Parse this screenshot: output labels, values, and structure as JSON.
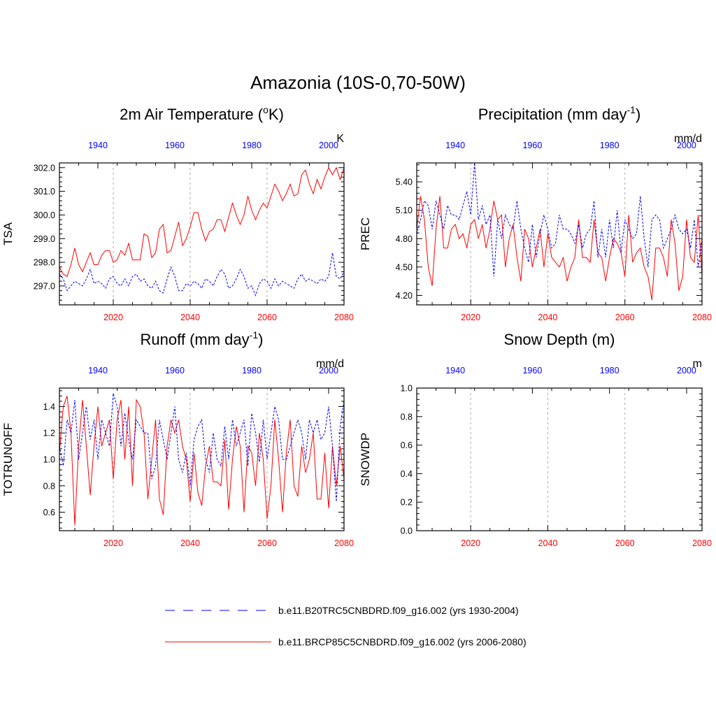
{
  "figure": {
    "title": "Amazonia (10S-0,70-50W)",
    "colors": {
      "control": "#0000ff",
      "future": "#ff0000",
      "grid": "#aaaaaa"
    }
  },
  "legend": [
    {
      "label": "b.e11.B20TRC5CNBDRD.f09_g16.002 (yrs 1930-2004)",
      "style": "dashed",
      "color": "#0000ff"
    },
    {
      "label": "b.e11.BRCP85C5CNBDRD.f09_g16.002 (yrs 2006-2080)",
      "style": "solid",
      "color": "#ff0000"
    }
  ],
  "chart_data": [
    {
      "type": "line",
      "title": "2m Air Temperature (oK)",
      "title_main": "2m Air Temperature (",
      "title_sup": "o",
      "title_end": "K)",
      "ylabel": "TSA",
      "units": "K",
      "ylim": [
        296.2,
        302.2
      ],
      "yticks": [
        297.0,
        298.0,
        299.0,
        300.0,
        301.0,
        302.0
      ],
      "ytick_labels": [
        "297.0",
        "298.0",
        "299.0",
        "300.0",
        "301.0",
        "302.0"
      ],
      "xlim_bottom": [
        2006,
        2080
      ],
      "xticks_bottom": [
        2020,
        2040,
        2060,
        2080
      ],
      "xlim_top": [
        1930,
        2004
      ],
      "xticks_top": [
        1940,
        1960,
        1980,
        2000
      ],
      "series": [
        {
          "name": "b.e11.BRCP85C5CNBDRD.f09_g16.002 (yrs 2006-2080)",
          "color": "#ff0000",
          "style": "solid",
          "axis": "bottom",
          "values": [
            297.8,
            297.5,
            297.4,
            297.9,
            298.6,
            297.9,
            297.6,
            298.0,
            298.4,
            297.9,
            297.9,
            298.3,
            298.5,
            298.5,
            298.0,
            298.1,
            298.5,
            298.3,
            298.8,
            298.1,
            298.1,
            298.1,
            299.2,
            299.1,
            298.2,
            298.4,
            299.4,
            299.6,
            298.4,
            298.5,
            299.1,
            299.7,
            298.7,
            299.0,
            299.5,
            300.1,
            300.1,
            299.4,
            298.9,
            299.3,
            299.4,
            299.8,
            299.8,
            299.3,
            299.9,
            300.5,
            300.0,
            299.6,
            300.0,
            300.8,
            300.2,
            299.8,
            300.2,
            300.5,
            300.3,
            300.8,
            301.3,
            301.0,
            300.6,
            300.9,
            301.3,
            300.8,
            300.9,
            301.7,
            301.9,
            301.3,
            300.9,
            301.5,
            301.1,
            301.6,
            302.0,
            301.7,
            302.0,
            301.5,
            302.0
          ]
        },
        {
          "name": "b.e11.B20TRC5CNBDRD.f09_g16.002 (yrs 1930-2004)",
          "color": "#0000ff",
          "style": "dashed",
          "axis": "top",
          "values": [
            297.5,
            297.3,
            296.8,
            297.0,
            297.2,
            297.1,
            297.0,
            297.3,
            297.7,
            297.1,
            297.2,
            297.1,
            296.9,
            297.3,
            297.4,
            297.1,
            297.0,
            297.3,
            297.0,
            297.4,
            297.5,
            297.2,
            297.3,
            297.0,
            296.9,
            297.2,
            296.8,
            296.7,
            297.3,
            297.8,
            297.4,
            296.8,
            296.8,
            297.1,
            297.0,
            297.2,
            297.1,
            296.9,
            297.3,
            297.2,
            297.0,
            297.4,
            297.7,
            297.5,
            296.9,
            297.0,
            297.3,
            297.7,
            297.4,
            296.9,
            297.0,
            296.6,
            297.1,
            297.3,
            297.2,
            296.9,
            297.3,
            297.0,
            297.2,
            297.1,
            297.0,
            296.9,
            297.3,
            297.5,
            297.2,
            297.3,
            297.2,
            297.1,
            297.3,
            297.2,
            297.4,
            298.4,
            297.4,
            297.3,
            297.6
          ]
        }
      ]
    },
    {
      "type": "line",
      "title": "Precipitation (mm day-1)",
      "title_main": "Precipitation (mm day",
      "title_sup": "-1",
      "title_end": ")",
      "ylabel": "PREC",
      "units": "mm/d",
      "ylim": [
        4.1,
        5.6
      ],
      "yticks": [
        4.2,
        4.5,
        4.8,
        5.1,
        5.4
      ],
      "ytick_labels": [
        "4.20",
        "4.50",
        "4.80",
        "5.10",
        "5.40"
      ],
      "xlim_bottom": [
        2006,
        2080
      ],
      "xticks_bottom": [
        2020,
        2040,
        2060,
        2080
      ],
      "xlim_top": [
        1930,
        2004
      ],
      "xticks_top": [
        1940,
        1960,
        1980,
        2000
      ],
      "series": [
        {
          "name": "b.e11.BRCP85C5CNBDRD.f09_g16.002 (yrs 2006-2080)",
          "color": "#ff0000",
          "style": "solid",
          "axis": "bottom",
          "values": [
            4.9,
            5.25,
            5.0,
            4.5,
            4.3,
            4.9,
            5.25,
            4.7,
            4.7,
            4.9,
            4.95,
            4.8,
            4.85,
            4.7,
            4.95,
            5.0,
            4.8,
            4.95,
            4.7,
            4.9,
            5.2,
            5.0,
            5.05,
            4.5,
            4.8,
            4.95,
            4.6,
            4.35,
            4.9,
            4.8,
            4.5,
            4.7,
            4.9,
            4.5,
            4.85,
            4.6,
            4.55,
            4.5,
            4.6,
            4.35,
            4.5,
            4.6,
            5.0,
            4.6,
            4.6,
            4.55,
            5.0,
            4.65,
            4.6,
            4.35,
            4.6,
            4.8,
            4.75,
            4.65,
            4.4,
            5.05,
            4.55,
            4.65,
            4.7,
            4.5,
            4.4,
            4.15,
            4.7,
            4.7,
            4.6,
            4.4,
            5.0,
            4.75,
            4.25,
            4.4,
            5.0,
            4.6,
            4.55,
            5.05,
            4.4
          ]
        },
        {
          "name": "b.e11.B20TRC5CNBDRD.f09_g16.002 (yrs 1930-2004)",
          "color": "#0000ff",
          "style": "dashed",
          "axis": "top",
          "values": [
            4.85,
            5.0,
            5.2,
            5.15,
            4.9,
            5.2,
            5.05,
            4.9,
            5.15,
            5.05,
            5.05,
            5.0,
            5.15,
            5.3,
            5.05,
            5.6,
            5.0,
            5.15,
            4.95,
            5.05,
            4.4,
            5.0,
            4.8,
            5.05,
            4.95,
            4.9,
            5.2,
            4.9,
            4.7,
            4.55,
            4.95,
            4.6,
            4.85,
            5.05,
            4.9,
            4.7,
            4.75,
            5.05,
            4.9,
            4.9,
            4.85,
            4.75,
            4.95,
            4.7,
            4.85,
            4.9,
            5.2,
            4.6,
            4.9,
            4.6,
            5.0,
            4.7,
            5.1,
            4.65,
            5.0,
            4.9,
            4.8,
            4.85,
            5.25,
            4.8,
            4.5,
            5.0,
            5.05,
            5.0,
            4.7,
            4.8,
            4.9,
            5.05,
            4.9,
            4.85,
            4.9,
            4.7,
            5.0,
            4.5,
            4.8
          ]
        }
      ]
    },
    {
      "type": "line",
      "title": "Runoff (mm day-1)",
      "title_main": "Runoff (mm day",
      "title_sup": "-1",
      "title_end": ")",
      "ylabel": "TOTRUNOFF",
      "units": "mm/d",
      "ylim": [
        0.46,
        1.54
      ],
      "yticks": [
        0.6,
        0.8,
        1.0,
        1.2,
        1.4
      ],
      "ytick_labels": [
        "0.6",
        "0.8",
        "1.0",
        "1.2",
        "1.4"
      ],
      "xlim_bottom": [
        2006,
        2080
      ],
      "xticks_bottom": [
        2020,
        2040,
        2060,
        2080
      ],
      "xlim_top": [
        1930,
        2004
      ],
      "xticks_top": [
        1940,
        1960,
        1980,
        2000
      ],
      "series": [
        {
          "name": "b.e11.BRCP85C5CNBDRD.f09_g16.002 (yrs 2006-2080)",
          "color": "#ff0000",
          "style": "solid",
          "axis": "bottom",
          "values": [
            1.05,
            1.4,
            1.48,
            1.2,
            0.5,
            1.1,
            1.45,
            1.1,
            0.73,
            1.1,
            1.4,
            1.1,
            1.2,
            1.3,
            0.85,
            1.3,
            1.45,
            1.0,
            1.4,
            0.8,
            1.45,
            1.4,
            1.2,
            0.7,
            1.0,
            1.3,
            0.7,
            0.58,
            1.1,
            1.3,
            1.2,
            1.3,
            1.1,
            1.0,
            0.68,
            1.05,
            0.75,
            0.65,
            0.95,
            1.1,
            0.83,
            0.83,
            0.8,
            1.15,
            0.62,
            1.0,
            1.25,
            1.1,
            0.6,
            1.1,
            1.05,
            0.8,
            1.2,
            1.0,
            0.55,
            0.8,
            1.3,
            1.0,
            0.6,
            1.05,
            1.3,
            0.8,
            0.72,
            1.1,
            0.9,
            1.0,
            1.2,
            0.7,
            0.7,
            1.05,
            0.63,
            1.1,
            0.8,
            1.1,
            0.85
          ]
        },
        {
          "name": "b.e11.B20TRC5CNBDRD.f09_g16.002 (yrs 1930-2004)",
          "color": "#0000ff",
          "style": "dashed",
          "axis": "top",
          "values": [
            1.1,
            0.95,
            1.3,
            1.2,
            1.45,
            1.0,
            1.2,
            1.4,
            1.15,
            1.3,
            1.0,
            1.3,
            1.2,
            1.1,
            1.5,
            1.4,
            1.1,
            1.35,
            1.15,
            1.0,
            1.3,
            1.25,
            1.2,
            1.2,
            0.85,
            0.95,
            1.3,
            1.15,
            1.0,
            1.2,
            1.4,
            1.0,
            0.9,
            1.05,
            0.8,
            1.15,
            1.25,
            1.3,
            1.0,
            0.9,
            1.2,
            1.0,
            0.95,
            1.25,
            1.0,
            1.3,
            1.1,
            1.2,
            1.3,
            0.95,
            1.35,
            1.2,
            0.98,
            1.3,
            1.0,
            1.2,
            1.4,
            1.3,
            1.0,
            1.0,
            1.1,
            1.2,
            1.3,
            1.2,
            1.0,
            1.3,
            1.2,
            1.3,
            1.15,
            1.2,
            1.4,
            1.1,
            0.68,
            1.25,
            1.45
          ]
        }
      ]
    },
    {
      "type": "line",
      "title": "Snow Depth (m)",
      "title_main": "Snow Depth (m)",
      "title_sup": "",
      "title_end": "",
      "ylabel": "SNOWDP",
      "units": "m",
      "ylim": [
        0.0,
        1.0
      ],
      "yticks": [
        0.0,
        0.2,
        0.4,
        0.6,
        0.8,
        1.0
      ],
      "ytick_labels": [
        "0.0",
        "0.2",
        "0.4",
        "0.6",
        "0.8",
        "1.0"
      ],
      "xlim_bottom": [
        2006,
        2080
      ],
      "xticks_bottom": [
        2020,
        2040,
        2060,
        2080
      ],
      "xlim_top": [
        1930,
        2004
      ],
      "xticks_top": [
        1940,
        1960,
        1980,
        2000
      ],
      "series": []
    }
  ]
}
